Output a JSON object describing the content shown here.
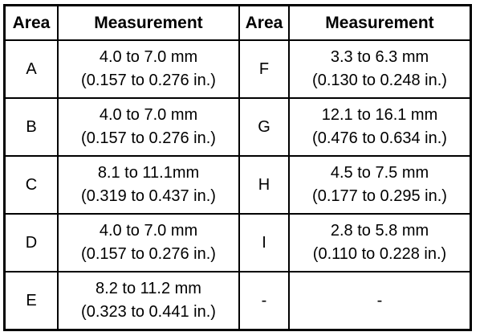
{
  "table": {
    "header": [
      "Area",
      "Measurement",
      "Area",
      "Measurement"
    ],
    "rows": [
      [
        "A",
        [
          "4.0 to 7.0 mm",
          "(0.157 to 0.276 in.)"
        ],
        "F",
        [
          "3.3 to 6.3 mm",
          "(0.130 to 0.248 in.)"
        ]
      ],
      [
        "B",
        [
          "4.0 to 7.0 mm",
          "(0.157 to 0.276 in.)"
        ],
        "G",
        [
          "12.1 to 16.1 mm",
          "(0.476 to 0.634 in.)"
        ]
      ],
      [
        "C",
        [
          "8.1 to 11.1mm",
          "(0.319 to 0.437 in.)"
        ],
        "H",
        [
          "4.5 to 7.5 mm",
          "(0.177 to 0.295 in.)"
        ]
      ],
      [
        "D",
        [
          "4.0 to 7.0 mm",
          "(0.157 to 0.276 in.)"
        ],
        "I",
        [
          "2.8 to 5.8 mm",
          "(0.110 to 0.228 in.)"
        ]
      ],
      [
        "E",
        [
          "8.2 to 11.2 mm",
          "(0.323 to 0.441 in.)"
        ],
        "-",
        [
          "-"
        ]
      ]
    ]
  }
}
